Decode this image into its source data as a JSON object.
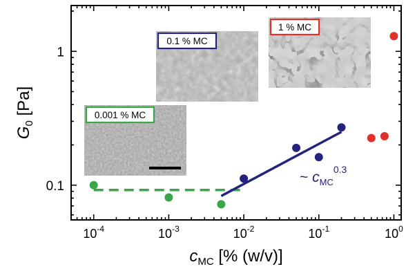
{
  "chart_data": {
    "type": "scatter",
    "title": "",
    "xlabel": {
      "main": "c",
      "sub": "MC",
      "rest": " [% (w/v)]"
    },
    "ylabel": {
      "main": "G",
      "sub": "0",
      "rest": " [Pa]"
    },
    "x_scale": "log",
    "y_scale": "log",
    "xlim": [
      5e-05,
      1.25
    ],
    "ylim": [
      0.055,
      2.2
    ],
    "x_ticks": [
      {
        "value": 0.0001,
        "base": "10",
        "exp": "-4"
      },
      {
        "value": 0.001,
        "base": "10",
        "exp": "-3"
      },
      {
        "value": 0.01,
        "base": "10",
        "exp": "-2"
      },
      {
        "value": 0.1,
        "base": "10",
        "exp": "-1"
      },
      {
        "value": 1,
        "base": "10",
        "exp": "0"
      }
    ],
    "y_ticks": [
      {
        "value": 0.1,
        "label": "0.1"
      },
      {
        "value": 1,
        "label": "1"
      }
    ],
    "series": [
      {
        "color": "#3aa64a",
        "points": [
          {
            "x": 0.0001,
            "y": 0.1
          },
          {
            "x": 0.001,
            "y": 0.081
          },
          {
            "x": 0.005,
            "y": 0.072
          }
        ],
        "fit": {
          "style": "dashed",
          "x": [
            0.0001,
            0.009
          ],
          "y": [
            0.092,
            0.092
          ]
        }
      },
      {
        "color": "#24247e",
        "points": [
          {
            "x": 0.01,
            "y": 0.112
          },
          {
            "x": 0.05,
            "y": 0.19
          },
          {
            "x": 0.1,
            "y": 0.162
          },
          {
            "x": 0.2,
            "y": 0.27
          }
        ],
        "fit": {
          "style": "solid",
          "x": [
            0.005,
            0.2
          ],
          "y": [
            0.083,
            0.25
          ]
        }
      },
      {
        "color": "#e0302a",
        "points": [
          {
            "x": 0.5,
            "y": 0.225
          },
          {
            "x": 0.75,
            "y": 0.232
          },
          {
            "x": 1.0,
            "y": 1.3
          }
        ]
      }
    ],
    "annotation": {
      "prefix": "~ ",
      "main": "c",
      "sub": "MC",
      "sup": "0.3",
      "color": "#24247e"
    },
    "insets": [
      {
        "label": "0.001 % MC",
        "color": "#3aa64a",
        "scale_bar": true
      },
      {
        "label": "0.1 % MC",
        "color": "#24247e"
      },
      {
        "label": "1 % MC",
        "color": "#e0302a"
      }
    ]
  }
}
